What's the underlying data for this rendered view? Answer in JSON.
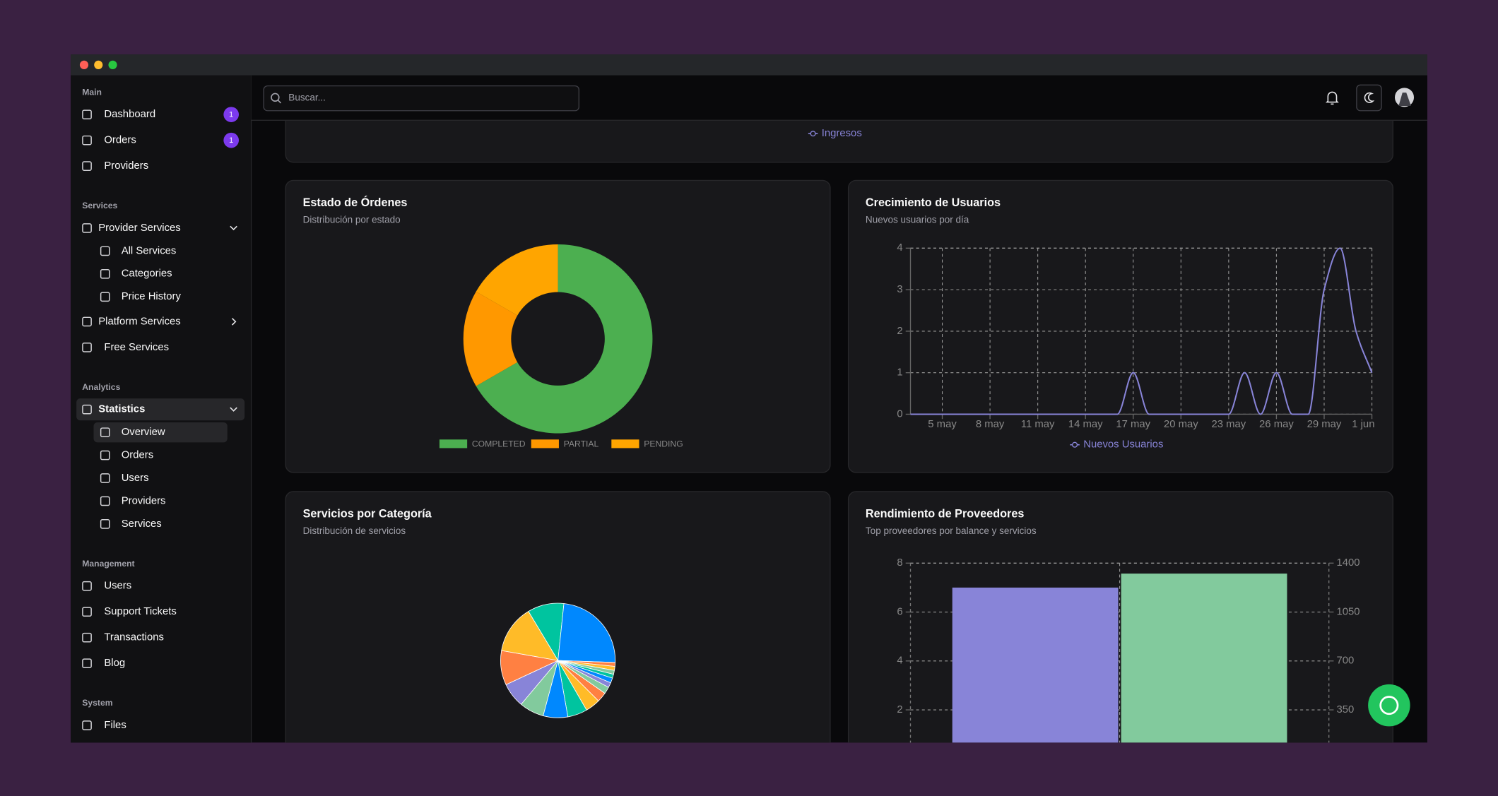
{
  "sidebar": {
    "sections": [
      {
        "title": "Main",
        "items": [
          {
            "label": "Dashboard",
            "badge": 1
          },
          {
            "label": "Orders",
            "badge": 1
          },
          {
            "label": "Providers"
          }
        ]
      },
      {
        "title": "Services",
        "items": [
          {
            "label": "Provider Services",
            "expanded": true,
            "children": [
              {
                "label": "All Services"
              },
              {
                "label": "Categories"
              },
              {
                "label": "Price History"
              }
            ]
          },
          {
            "label": "Platform Services",
            "expanded": false
          },
          {
            "label": "Free Services"
          }
        ]
      },
      {
        "title": "Analytics",
        "items": [
          {
            "label": "Statistics",
            "expanded": true,
            "active": true,
            "children": [
              {
                "label": "Overview",
                "active": true
              },
              {
                "label": "Orders"
              },
              {
                "label": "Users"
              },
              {
                "label": "Providers"
              },
              {
                "label": "Services"
              }
            ]
          }
        ]
      },
      {
        "title": "Management",
        "items": [
          {
            "label": "Users"
          },
          {
            "label": "Support Tickets"
          },
          {
            "label": "Transactions"
          },
          {
            "label": "Blog"
          }
        ]
      },
      {
        "title": "System",
        "items": [
          {
            "label": "Files"
          }
        ]
      }
    ]
  },
  "header": {
    "search_placeholder": "Buscar..."
  },
  "top_card": {
    "legend": "Ingresos"
  },
  "charts": [
    {
      "chart_data": {
        "type": "donut",
        "title": "Estado de Órdenes",
        "subtitle": "Distribución por estado",
        "categories": [
          "COMPLETED",
          "PARTIAL",
          "PENDING"
        ],
        "values": [
          4,
          1,
          1
        ],
        "colors": [
          "#4caf50",
          "#ff9800",
          "#ffa500"
        ],
        "legend": "bottom"
      }
    },
    {
      "chart_data": {
        "type": "line",
        "title": "Crecimiento de Usuarios",
        "subtitle": "Nuevos usuarios por día",
        "categories": [
          null,
          null,
          "5 may",
          null,
          null,
          "8 may",
          null,
          null,
          "11 may",
          null,
          null,
          "14 may",
          null,
          null,
          "17 may",
          null,
          null,
          "20 may",
          null,
          null,
          "23 may",
          null,
          null,
          "26 may",
          null,
          null,
          "29 may",
          null,
          null,
          "1 jun"
        ],
        "series": [
          {
            "name": "Nuevos Usuarios",
            "color": "#8884d8",
            "values": [
              0,
              0,
              0,
              0,
              0,
              0,
              0,
              0,
              0,
              0,
              0,
              0,
              0,
              0,
              1,
              0,
              0,
              0,
              0,
              0,
              0,
              1,
              0,
              1,
              0,
              0,
              3,
              4,
              2,
              1
            ]
          }
        ],
        "ylim": [
          0,
          4
        ],
        "yticks": [
          0,
          1,
          2,
          3,
          4
        ],
        "grid": true
      }
    },
    {
      "chart_data": {
        "type": "pie",
        "title": "Servicios por Categoría",
        "subtitle": "Distribución de servicios",
        "values": [
          37,
          86,
          4,
          4,
          4,
          4,
          5,
          5,
          7,
          10,
          15,
          20,
          25,
          25,
          25,
          35,
          49
        ],
        "colors": [
          "#00C49F",
          "#0088FE",
          "#FF8042",
          "#FFBB28",
          "#82ca9d",
          "#00C49F",
          "#0088FE",
          "#8884d8",
          "#82ca9d",
          "#FF8042",
          "#FFBB28",
          "#00C49F",
          "#0088FE",
          "#82ca9d",
          "#8884d8",
          "#FF8042",
          "#FFBB28"
        ]
      }
    },
    {
      "chart_data": {
        "type": "bar",
        "title": "Rendimiento de Proveedores",
        "subtitle": "Top proveedores por balance y servicios",
        "categories": [
          null
        ],
        "series": [
          {
            "color": "#8884d8",
            "values": [
              7
            ]
          },
          {
            "color": "#82ca9d",
            "values": [
              1325
            ],
            "axis": "y2"
          }
        ],
        "ylim": [
          0,
          8
        ],
        "yticks": [
          2,
          4,
          6,
          8
        ],
        "y2lim": [
          0,
          1400
        ],
        "y2ticks": [
          350,
          700,
          1050,
          1400
        ],
        "grid": true
      }
    }
  ]
}
